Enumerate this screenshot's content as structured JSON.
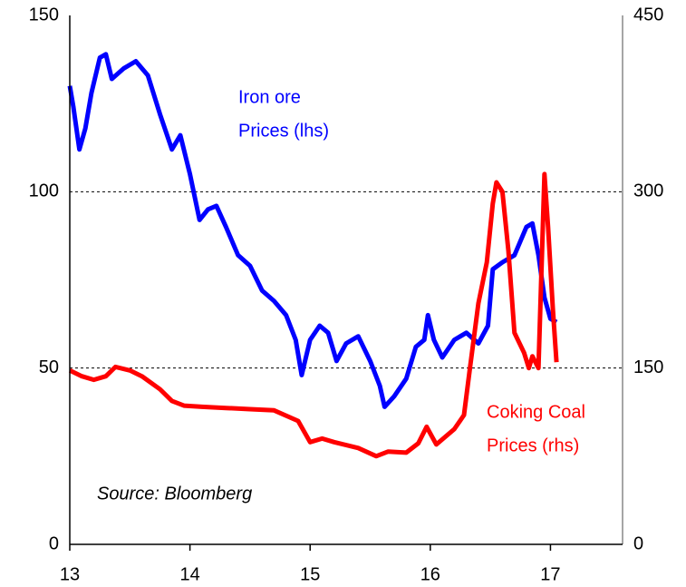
{
  "chart_data": {
    "type": "line",
    "xlim": [
      13,
      17.6
    ],
    "xticks": [
      13,
      14,
      15,
      16,
      17
    ],
    "ylim": [
      0,
      150
    ],
    "yticks": [
      0,
      50,
      100,
      150
    ],
    "y2lim": [
      0,
      450
    ],
    "y2ticks": [
      0,
      150,
      300,
      450
    ],
    "grid": true,
    "annotations": [
      {
        "lines": [
          "Iron ore",
          "Prices (lhs)"
        ],
        "color": "#0000ff"
      },
      {
        "lines": [
          "Coking Coal",
          "Prices (rhs)"
        ],
        "color": "#ff0000"
      },
      {
        "lines": [
          "Source: Bloomberg"
        ],
        "color": "#000000"
      }
    ],
    "series": [
      {
        "name": "Iron ore",
        "color": "#0000ff",
        "axis": "y",
        "x": [
          13.0,
          13.03,
          13.08,
          13.13,
          13.18,
          13.25,
          13.3,
          13.35,
          13.45,
          13.55,
          13.65,
          13.75,
          13.85,
          13.92,
          14.0,
          14.08,
          14.15,
          14.22,
          14.3,
          14.4,
          14.5,
          14.6,
          14.7,
          14.8,
          14.88,
          14.93,
          15.0,
          15.08,
          15.15,
          15.22,
          15.3,
          15.4,
          15.5,
          15.58,
          15.62,
          15.7,
          15.8,
          15.88,
          15.95,
          15.98,
          16.03,
          16.1,
          16.2,
          16.3,
          16.4,
          16.48,
          16.52,
          16.6,
          16.7,
          16.8,
          16.85,
          16.9,
          16.95,
          17.0,
          17.05
        ],
        "values": [
          130,
          124,
          112,
          118,
          128,
          138,
          139,
          132,
          135,
          137,
          133,
          122,
          112,
          116,
          105,
          92,
          95,
          96,
          90,
          82,
          79,
          72,
          69,
          65,
          58,
          48,
          58,
          62,
          60,
          52,
          57,
          59,
          52,
          45,
          39,
          42,
          47,
          56,
          58,
          65,
          58,
          53,
          58,
          60,
          57,
          62,
          78,
          80,
          82,
          90,
          91,
          82,
          70,
          64,
          63
        ]
      },
      {
        "name": "Coking Coal",
        "color": "#ff0000",
        "axis": "y2",
        "x": [
          13.0,
          13.1,
          13.2,
          13.3,
          13.38,
          13.5,
          13.6,
          13.75,
          13.85,
          13.95,
          14.1,
          14.3,
          14.5,
          14.7,
          14.9,
          15.0,
          15.1,
          15.2,
          15.4,
          15.55,
          15.65,
          15.8,
          15.9,
          15.97,
          16.05,
          16.2,
          16.28,
          16.33,
          16.4,
          16.47,
          16.52,
          16.55,
          16.6,
          16.65,
          16.7,
          16.78,
          16.82,
          16.85,
          16.9,
          16.93,
          16.95,
          16.98,
          17.02,
          17.05
        ],
        "values": [
          148,
          143,
          140,
          143,
          151,
          148,
          143,
          132,
          122,
          118,
          117,
          116,
          115,
          114,
          105,
          87,
          90,
          87,
          82,
          75,
          79,
          78,
          86,
          100,
          85,
          98,
          110,
          150,
          205,
          240,
          290,
          308,
          300,
          250,
          180,
          163,
          150,
          160,
          150,
          250,
          315,
          270,
          200,
          155
        ]
      }
    ]
  }
}
